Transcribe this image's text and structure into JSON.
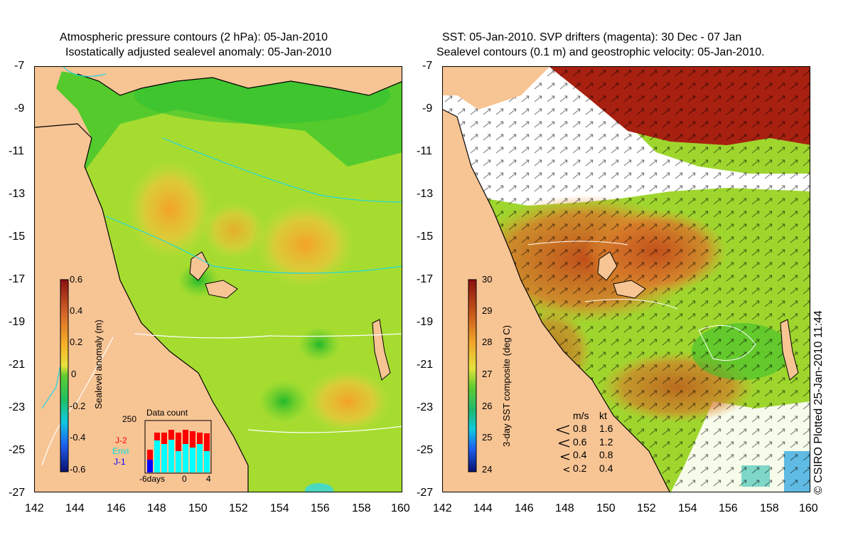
{
  "left_panel": {
    "title_line1": "Atmospheric pressure contours (2 hPa): 05-Jan-2010",
    "title_line2": "Isostatically adjusted sealevel anomaly: 05-Jan-2010",
    "colorbar": {
      "title": "Sealevel anomaly (m)",
      "ticks": [
        "0.6",
        "0.4",
        "0.2",
        "0",
        "-0.2",
        "-0.4",
        "-0.6"
      ]
    },
    "data_count": {
      "title": "Data count",
      "max_label": "250",
      "x_labels": [
        "-6days",
        "0",
        "4"
      ],
      "series": [
        {
          "name": "J-2",
          "color": "#ff0000"
        },
        {
          "name": "Envi",
          "color": "#00ffff"
        },
        {
          "name": "J-1",
          "color": "#0000ff"
        }
      ]
    }
  },
  "right_panel": {
    "title_line1": "SST: 05-Jan-2010. SVP drifters (magenta): 30 Dec - 07 Jan",
    "title_line2": "Sealevel contours (0.1 m) and geostrophic velocity: 05-Jan-2010.",
    "colorbar": {
      "title": "3-day SST composite (deg C)",
      "ticks": [
        "30",
        "29",
        "28",
        "27",
        "26",
        "25",
        "24"
      ]
    },
    "velocity_legend": {
      "header_ms": "m/s",
      "header_kt": "kt",
      "rows": [
        {
          "ms": "0.8",
          "kt": "1.6"
        },
        {
          "ms": "0.6",
          "kt": "1.2"
        },
        {
          "ms": "0.4",
          "kt": "0.8"
        },
        {
          "ms": "0.2",
          "kt": "0.4"
        }
      ]
    }
  },
  "axes": {
    "y_ticks": [
      "-7",
      "-9",
      "-11",
      "-13",
      "-15",
      "-17",
      "-19",
      "-21",
      "-23",
      "-25",
      "-27"
    ],
    "x_ticks": [
      "142",
      "144",
      "146",
      "148",
      "150",
      "152",
      "154",
      "156",
      "158",
      "160"
    ]
  },
  "copyright": "© CSIRO Plotted 25-Jan-2010 11:44",
  "colors": {
    "land": "#f7c494",
    "ocean_mid": "#9ede2c",
    "ocean_low": "#1cc41c",
    "warm": "#d8781e",
    "hot": "#a82010"
  }
}
